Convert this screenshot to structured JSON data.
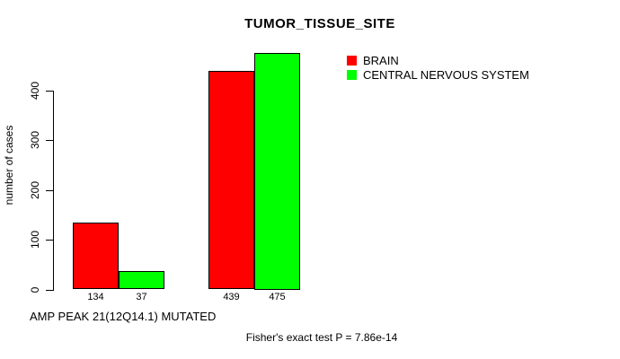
{
  "chart_data": {
    "type": "bar",
    "title": "TUMOR_TISSUE_SITE",
    "ylabel": "number of cases",
    "xlabel": "AMP PEAK 21(12Q14.1) MUTATED",
    "footnote": "Fisher's exact test P = 7.86e-14",
    "yticks": [
      0,
      100,
      200,
      300,
      400
    ],
    "ylim": [
      0,
      475
    ],
    "grid": false,
    "legend_position": "top-right",
    "series": [
      {
        "name": "BRAIN",
        "color": "#ff0000",
        "values": [
          134,
          439
        ]
      },
      {
        "name": "CENTRAL NERVOUS SYSTEM",
        "color": "#00ff00",
        "values": [
          37,
          475
        ]
      }
    ],
    "bar_value_labels": [
      "134",
      "37",
      "439",
      "475"
    ],
    "colors": {
      "bar_outline": "#000000",
      "text": "#000000",
      "background": "#ffffff"
    }
  }
}
